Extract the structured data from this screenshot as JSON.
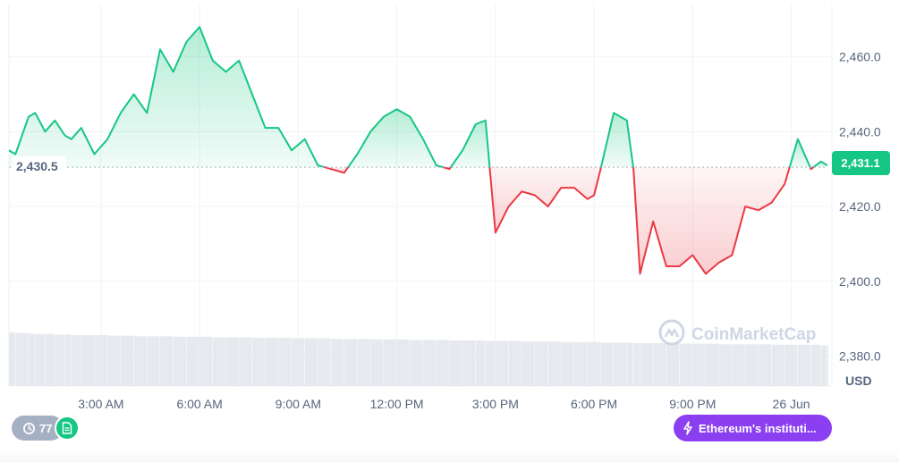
{
  "chart_data": {
    "type": "area",
    "unit": "USD",
    "baseline": 2430.5,
    "baseline_label": "2,430.5",
    "current_price": 2431.1,
    "current_price_label": "2,431.1",
    "ylim": [
      2372,
      2474
    ],
    "y_ticks": [
      2460,
      2440,
      2420,
      2400,
      2380
    ],
    "y_tick_labels": [
      "2,460.0",
      "2,440.0",
      "2,420.0",
      "2,400.0",
      "2,380.0"
    ],
    "x_ticks": [
      3,
      6,
      9,
      12,
      15,
      18,
      21,
      24
    ],
    "x_tick_labels": [
      "3:00 AM",
      "6:00 AM",
      "9:00 AM",
      "12:00 PM",
      "3:00 PM",
      "6:00 PM",
      "9:00 PM",
      "26 Jun"
    ],
    "xlim": [
      0.2,
      25.1
    ],
    "x_hours": [
      0.2,
      0.4,
      0.8,
      1.0,
      1.3,
      1.6,
      1.9,
      2.1,
      2.4,
      2.8,
      3.2,
      3.6,
      4.0,
      4.4,
      4.8,
      5.2,
      5.6,
      6.0,
      6.4,
      6.8,
      7.2,
      7.6,
      8.0,
      8.4,
      8.8,
      9.2,
      9.6,
      10.0,
      10.4,
      10.8,
      11.2,
      11.6,
      12.0,
      12.4,
      12.8,
      13.2,
      13.6,
      14.0,
      14.4,
      14.7,
      15.0,
      15.4,
      15.8,
      16.2,
      16.6,
      17.0,
      17.4,
      17.8,
      18.0,
      18.2,
      18.6,
      19.0,
      19.2,
      19.4,
      19.8,
      20.2,
      20.6,
      21.0,
      21.4,
      21.8,
      22.2,
      22.6,
      23.0,
      23.4,
      23.8,
      24.2,
      24.6,
      24.9,
      25.1
    ],
    "prices": [
      2435,
      2434,
      2444,
      2445,
      2440,
      2443,
      2439,
      2438,
      2441,
      2434,
      2438,
      2445,
      2450,
      2445,
      2462,
      2456,
      2464,
      2468,
      2459,
      2456,
      2459,
      2450,
      2441,
      2441,
      2435,
      2438,
      2431,
      2430,
      2429,
      2434,
      2440,
      2444,
      2446,
      2444,
      2438,
      2431,
      2430,
      2435,
      2442,
      2443,
      2413,
      2420,
      2424,
      2423,
      2420,
      2425,
      2425,
      2422,
      2423,
      2430,
      2445,
      2443,
      2430,
      2402,
      2416,
      2404,
      2404,
      2407,
      2402,
      2405,
      2407,
      2420,
      2419,
      2421,
      2426,
      2438,
      2430,
      2432,
      2431
    ],
    "volume": [
      1,
      0.99,
      0.98,
      0.97,
      0.97,
      0.96,
      0.96,
      0.95,
      0.95,
      0.95,
      0.94,
      0.94,
      0.93,
      0.93,
      0.93,
      0.92,
      0.92,
      0.92,
      0.91,
      0.91,
      0.91,
      0.9,
      0.9,
      0.9,
      0.89,
      0.89,
      0.89,
      0.88,
      0.88,
      0.88,
      0.87,
      0.87,
      0.87,
      0.86,
      0.86,
      0.86,
      0.85,
      0.85,
      0.85,
      0.84,
      0.84,
      0.84,
      0.83,
      0.83,
      0.83,
      0.82,
      0.82,
      0.82,
      0.82,
      0.81,
      0.81,
      0.81,
      0.8,
      0.8,
      0.8,
      0.8,
      0.79,
      0.79,
      0.79,
      0.78,
      0.78,
      0.78,
      0.78,
      0.77,
      0.77,
      0.77,
      0.77,
      0.76,
      0.76
    ],
    "colors": {
      "up": "#16c784",
      "down": "#ea3943",
      "axis": "#58667e",
      "grid": "#eff2f5"
    }
  },
  "watermark": {
    "text": "CoinMarketCap",
    "icon": "coinmarketcap-logo-icon"
  },
  "events": {
    "count": "77",
    "icon": "clock-history-icon"
  },
  "document_badge": {
    "icon": "document-icon"
  },
  "news": {
    "label": "Ethereum's instituti...",
    "icon": "lightning-icon",
    "color": "#8b3ff0"
  }
}
